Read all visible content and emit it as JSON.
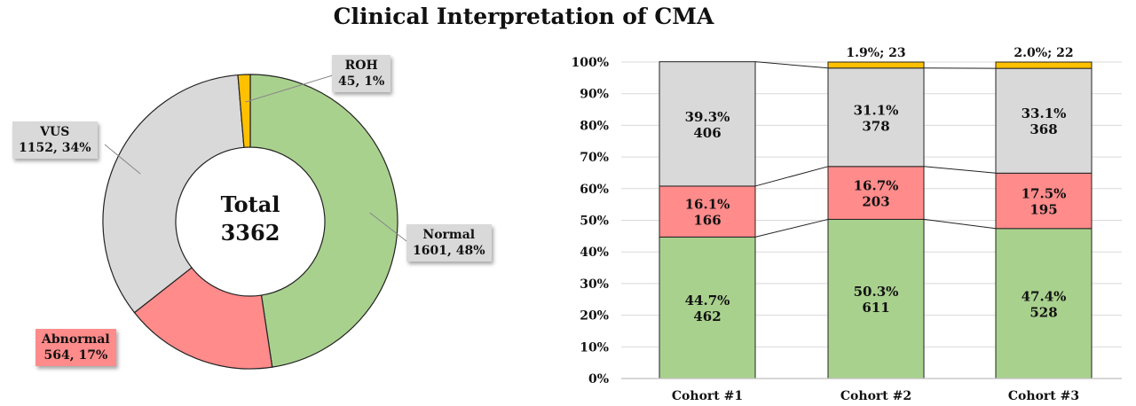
{
  "title": "Clinical Interpretation of CMA",
  "chart_data": [
    {
      "type": "pie",
      "variant": "donut",
      "center_label": {
        "line1": "Total",
        "line2": "3362"
      },
      "slices": [
        {
          "name": "Normal",
          "value": 1601,
          "label": "1601, 48%",
          "color": "#A9D18E"
        },
        {
          "name": "Abnormal",
          "value": 564,
          "label": "564, 17%",
          "color": "#FF8B8B"
        },
        {
          "name": "VUS",
          "value": 1152,
          "label": "1152, 34%",
          "color": "#D9D9D9"
        },
        {
          "name": "ROH",
          "value": 45,
          "label": "45, 1%",
          "color": "#FFC000"
        }
      ]
    },
    {
      "type": "bar",
      "variant": "stacked-100",
      "categories": [
        "Cohort #1",
        "Cohort #2",
        "Cohort #3"
      ],
      "ylim": [
        0,
        100
      ],
      "yticks": [
        "0%",
        "10%",
        "20%",
        "30%",
        "40%",
        "50%",
        "60%",
        "70%",
        "80%",
        "90%",
        "100%"
      ],
      "grid": true,
      "series": [
        {
          "key": "normal",
          "color": "#A9D18E",
          "values": [
            44.7,
            50.3,
            47.4
          ],
          "counts": [
            462,
            611,
            528
          ],
          "pct_labels": [
            "44.7%",
            "50.3%",
            "47.4%"
          ]
        },
        {
          "key": "abnormal",
          "color": "#FF8B8B",
          "values": [
            16.1,
            16.7,
            17.5
          ],
          "counts": [
            166,
            203,
            195
          ],
          "pct_labels": [
            "16.1%",
            "16.7%",
            "17.5%"
          ]
        },
        {
          "key": "vus",
          "color": "#D9D9D9",
          "values": [
            39.3,
            31.1,
            33.1
          ],
          "counts": [
            406,
            378,
            368
          ],
          "pct_labels": [
            "39.3%",
            "31.1%",
            "33.1%"
          ]
        },
        {
          "key": "roh",
          "color": "#FFC000",
          "values": [
            0,
            1.9,
            2.0
          ],
          "counts": [
            0,
            23,
            22
          ],
          "pct_labels": [
            "",
            "1.9%; 23",
            "2.0%; 22"
          ]
        }
      ]
    }
  ]
}
